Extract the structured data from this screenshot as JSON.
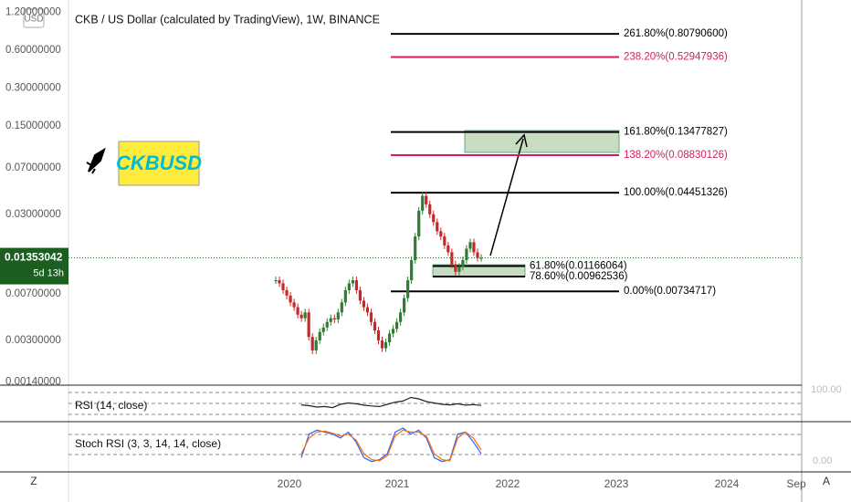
{
  "chart_data": {
    "type": "candlestick",
    "title": "CKB / US Dollar (calculated by TradingView), 1W, BINANCE",
    "currency": "USD",
    "badge": "CKBUSD",
    "log_scale": true,
    "ylim": [
      0.00137,
      1.5
    ],
    "yticks": [
      {
        "value": 1.2,
        "label": "1.20000000"
      },
      {
        "value": 0.6,
        "label": "0.60000000"
      },
      {
        "value": 0.3,
        "label": "0.30000000"
      },
      {
        "value": 0.15,
        "label": "0.15000000"
      },
      {
        "value": 0.07,
        "label": "0.07000000"
      },
      {
        "value": 0.03,
        "label": "0.03000000"
      },
      {
        "value": 0.007,
        "label": "0.00700000"
      },
      {
        "value": 0.003,
        "label": "0.00300000"
      },
      {
        "value": 0.0014,
        "label": "0.00140000"
      }
    ],
    "last_price": {
      "value": 0.01353042,
      "label": "0.01353042",
      "countdown": "5d 13h"
    },
    "closes": [
      0.009,
      0.0085,
      0.0075,
      0.0068,
      0.006,
      0.0055,
      0.0048,
      0.0045,
      0.005,
      0.0032,
      0.0025,
      0.003,
      0.0035,
      0.0038,
      0.0042,
      0.0045,
      0.0044,
      0.005,
      0.006,
      0.0075,
      0.0085,
      0.009,
      0.0075,
      0.0062,
      0.0055,
      0.005,
      0.0042,
      0.0036,
      0.003,
      0.0026,
      0.0029,
      0.0034,
      0.0037,
      0.0042,
      0.005,
      0.0065,
      0.009,
      0.013,
      0.02,
      0.032,
      0.042,
      0.036,
      0.03,
      0.026,
      0.022,
      0.02,
      0.017,
      0.015,
      0.012,
      0.0105,
      0.0115,
      0.013,
      0.016,
      0.018,
      0.015,
      0.0135,
      0.01353042
    ],
    "fib_levels": [
      {
        "value": 0.807906,
        "label": "261.80%(0.80790600)",
        "color": "#000000"
      },
      {
        "value": 0.52947936,
        "label": "238.20%(0.52947936)",
        "color": "#d81b60"
      },
      {
        "value": 0.13477827,
        "label": "161.80%(0.13477827)",
        "color": "#000000"
      },
      {
        "value": 0.08830126,
        "label": "138.20%(0.08830126)",
        "color": "#d81b60"
      },
      {
        "value": 0.04451326,
        "label": "100.00%(0.04451326)",
        "color": "#000000"
      },
      {
        "value": 0.01166064,
        "label": "61.80%(0.01166064)",
        "color": "#000000"
      },
      {
        "value": 0.00962536,
        "label": "78.60%(0.00962536)",
        "color": "#000000"
      },
      {
        "value": 0.00734717,
        "label": "0.00%(0.00734717)",
        "color": "#000000"
      }
    ],
    "time_labels": [
      "2020",
      "2021",
      "2022",
      "2023",
      "2024",
      "Sep"
    ],
    "rsi": {
      "name": "RSI (14, close)",
      "ylim": [
        0,
        100
      ],
      "values": [
        48,
        45,
        40,
        42,
        38,
        50,
        55,
        52,
        47,
        44,
        42,
        50,
        58,
        62,
        75,
        70,
        60,
        55,
        50,
        48,
        52,
        47,
        49,
        46
      ],
      "top_label": "100.00"
    },
    "stoch": {
      "name": "Stoch RSI (3, 3, 14, 14, close)",
      "ylim": [
        0,
        100
      ],
      "bottom_label": "0.00",
      "series": [
        {
          "color": "#2962ff",
          "values": [
            20,
            80,
            90,
            85,
            80,
            70,
            85,
            60,
            20,
            10,
            15,
            30,
            85,
            95,
            80,
            90,
            70,
            20,
            10,
            15,
            80,
            85,
            60,
            30
          ]
        },
        {
          "color": "#ff6d00",
          "values": [
            30,
            70,
            85,
            88,
            82,
            75,
            80,
            65,
            30,
            15,
            12,
            25,
            75,
            90,
            85,
            85,
            75,
            30,
            15,
            12,
            70,
            85,
            70,
            40
          ]
        }
      ]
    },
    "scale_buttons": [
      "Z",
      "A"
    ]
  }
}
